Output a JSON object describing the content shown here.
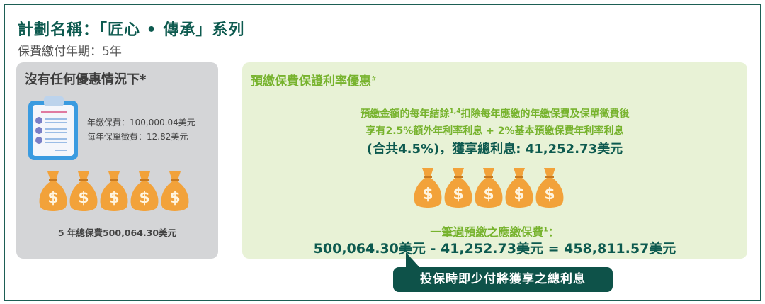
{
  "header": {
    "title": "計劃名稱：「匠心 • 傳承」系列",
    "subtitle": "保費繳付年期：5年"
  },
  "left_panel": {
    "heading": "沒有任何優惠情況下*",
    "annual_premium": "年繳保費：100,000.04美元",
    "policy_fee": "每年保單徵費：12.82美元",
    "total": "5 年總保費500,064.30美元",
    "bag_count": 5,
    "icons": [
      "clipboard-icon",
      "money-bag-icon"
    ]
  },
  "right_panel": {
    "heading": "預繳保費保證利率優惠",
    "heading_sup": "#",
    "line1_a": "預繳金額的每年結餘",
    "line1_sup": "1,4",
    "line1_b": "扣除每年應繳的年繳保費及保單徵費後",
    "line2": "享有2.5%額外年利率利息 + 2%基本預繳保費年利率利息",
    "line3": "(合共4.5%)，獲享總利息: 41,252.73美元",
    "line4": "一筆過預繳之應繳保費",
    "line4_sup": "1",
    "line4_end": "：",
    "line5": "500,064.30美元 - 41,252.73美元 = 458,811.57美元",
    "bag_count": 5
  },
  "callout": "投保時即少付將獲享之總利息",
  "colors": {
    "dark_green": "#0d5a4f",
    "light_green": "#77b32e",
    "panel_gray": "#d4d5d7",
    "panel_green": "#e8f2d6",
    "bag_orange": "#f2a23a"
  }
}
